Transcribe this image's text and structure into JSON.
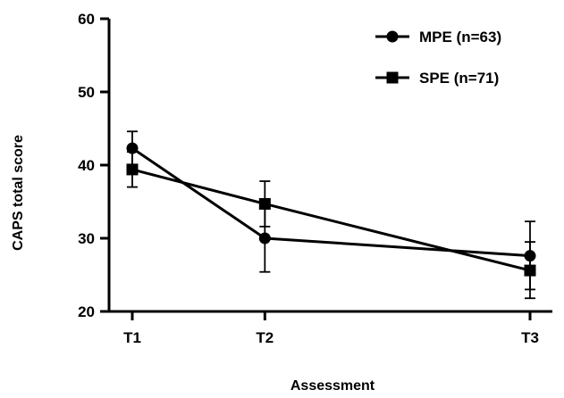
{
  "chart_data": {
    "type": "line",
    "title": "",
    "xlabel": "Assessment",
    "ylabel": "CAPS total score",
    "categories": [
      "T1",
      "T2",
      "T3"
    ],
    "x_positions": [
      0,
      1,
      3
    ],
    "ylim": [
      20,
      60
    ],
    "yticks": [
      20,
      30,
      40,
      50,
      60
    ],
    "grid": false,
    "legend_position": "top-right",
    "series": [
      {
        "name": "MPE (n=63)",
        "marker": "circle",
        "values": [
          42.3,
          30.0,
          27.6
        ],
        "error_low": [
          40.0,
          25.4,
          23.0
        ],
        "error_high": [
          44.6,
          34.6,
          32.3
        ],
        "color": "#000000"
      },
      {
        "name": "SPE (n=71)",
        "marker": "square",
        "values": [
          39.4,
          34.7,
          25.6
        ],
        "error_low": [
          37.0,
          31.6,
          21.8
        ],
        "error_high": [
          41.8,
          37.8,
          29.5
        ],
        "color": "#000000"
      }
    ]
  }
}
